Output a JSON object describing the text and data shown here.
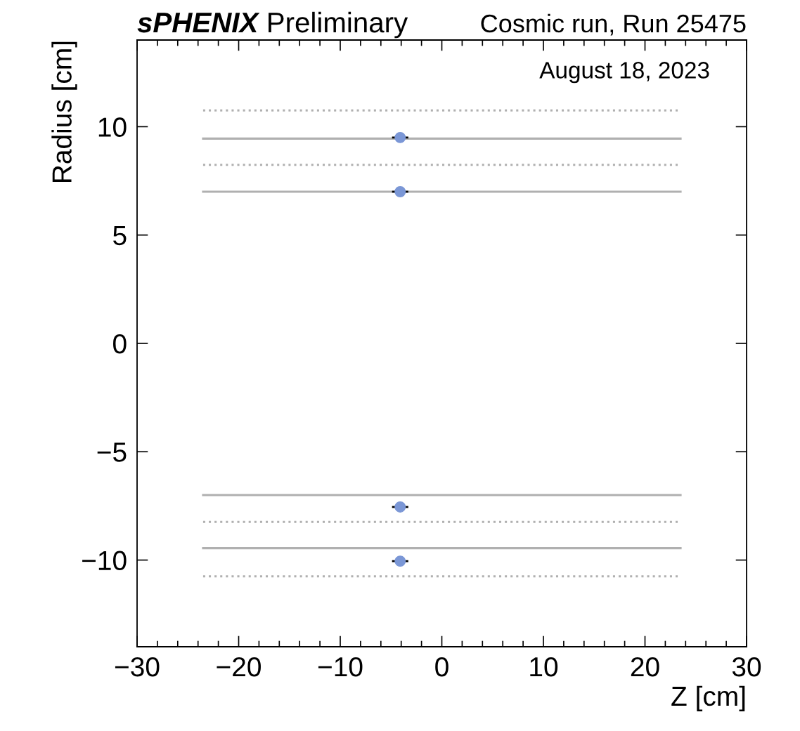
{
  "chart_data": {
    "type": "scatter",
    "title": "sPHENIX Preliminary",
    "subtitle": "Cosmic run, Run 25475",
    "xlabel": "Z [cm]",
    "ylabel": "Radius [cm]",
    "annotations": [
      "August 18, 2023"
    ],
    "xlim": [
      -30,
      30
    ],
    "xticks": [
      {
        "value": -30,
        "label": "−30"
      },
      {
        "value": -20,
        "label": "−20"
      },
      {
        "value": -10,
        "label": "−10"
      },
      0,
      10,
      20,
      30
    ],
    "ylim": [
      -14,
      14
    ],
    "yticks": [
      {
        "value": -10,
        "label": "−10"
      },
      {
        "value": -5,
        "label": "−5"
      },
      0,
      5,
      10
    ],
    "grid": false,
    "legend": false,
    "series": [
      {
        "type": "line",
        "x": [
          -23.5,
          23.5
        ],
        "values": [
          10.75,
          10.75
        ],
        "color": "#b0b0b0",
        "line_style": "dotted"
      },
      {
        "type": "line",
        "x": [
          -23.5,
          23.5
        ],
        "values": [
          9.45,
          9.45
        ],
        "color": "#b0b0b0",
        "line_style": "solid"
      },
      {
        "type": "line",
        "x": [
          -23.5,
          23.5
        ],
        "values": [
          8.24,
          8.24
        ],
        "color": "#b0b0b0",
        "line_style": "dotted"
      },
      {
        "type": "line",
        "x": [
          -23.5,
          23.5
        ],
        "values": [
          7.0,
          7.0
        ],
        "color": "#b0b0b0",
        "line_style": "solid"
      },
      {
        "type": "line",
        "x": [
          -23.5,
          23.5
        ],
        "values": [
          -7.0,
          -7.0
        ],
        "color": "#b0b0b0",
        "line_style": "solid"
      },
      {
        "type": "line",
        "x": [
          -23.5,
          23.5
        ],
        "values": [
          -8.24,
          -8.24
        ],
        "color": "#b0b0b0",
        "line_style": "dotted"
      },
      {
        "type": "line",
        "x": [
          -23.5,
          23.5
        ],
        "values": [
          -9.45,
          -9.45
        ],
        "color": "#b0b0b0",
        "line_style": "solid"
      },
      {
        "type": "line",
        "x": [
          -23.5,
          23.5
        ],
        "values": [
          -10.75,
          -10.75
        ],
        "color": "#b0b0b0",
        "line_style": "dotted"
      },
      {
        "type": "scatter",
        "x": [
          -4.1,
          -4.1,
          -4.1,
          -4.1
        ],
        "values": [
          9.5,
          7.0,
          -7.55,
          -10.05
        ],
        "xerrors": [
          0.8,
          0.8,
          0.8,
          0.8
        ],
        "color": "#7b97d6",
        "marker": "circle"
      }
    ]
  }
}
